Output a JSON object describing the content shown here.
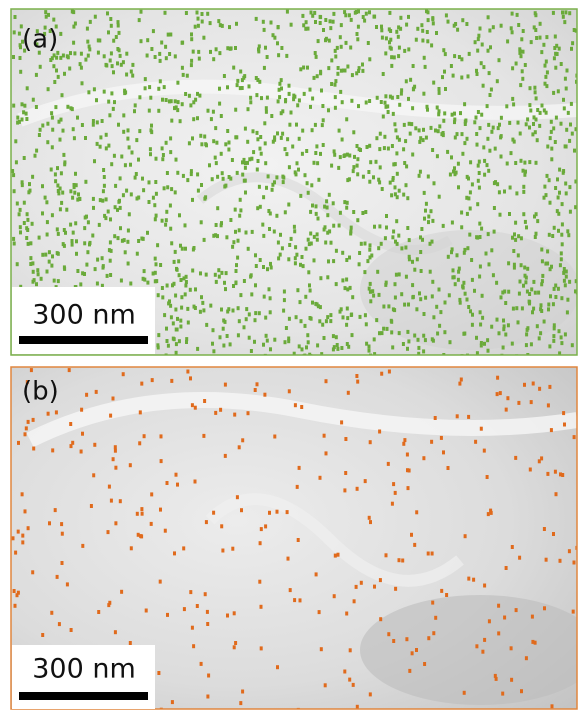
{
  "panels": [
    {
      "label": "(a)",
      "scale_bar": "300 nm"
    },
    {
      "label": "(b)",
      "scale_bar": "300 nm"
    }
  ]
}
